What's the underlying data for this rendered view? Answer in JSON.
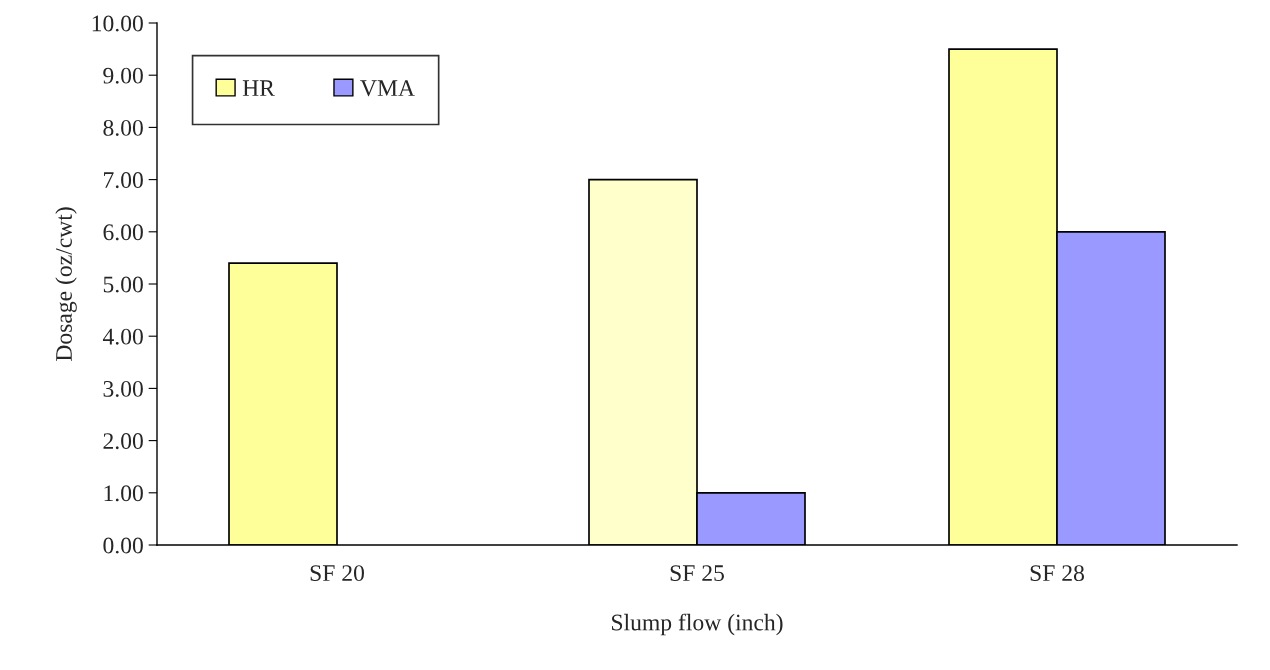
{
  "chart_data": {
    "type": "bar",
    "xlabel": "Slump flow (inch)",
    "ylabel": "Dosage (oz/cwt)",
    "categories": [
      "SF 20",
      "SF 25",
      "SF 28"
    ],
    "series": [
      {
        "name": "HR",
        "color": "#ffff99",
        "colors": [
          "#ffff99",
          "#ffffcc",
          "#ffff99"
        ],
        "values": [
          5.4,
          7.0,
          9.5
        ]
      },
      {
        "name": "VMA",
        "color": "#9999ff",
        "values": [
          null,
          1.0,
          6.0
        ]
      }
    ],
    "ylim": [
      0,
      10
    ],
    "yticks": [
      {
        "value": 0,
        "label": "0.00"
      },
      {
        "value": 1,
        "label": "1.00"
      },
      {
        "value": 2,
        "label": "2.00"
      },
      {
        "value": 3,
        "label": "3.00"
      },
      {
        "value": 4,
        "label": "4.00"
      },
      {
        "value": 5,
        "label": "5.00"
      },
      {
        "value": 6,
        "label": "6.00"
      },
      {
        "value": 7,
        "label": "7.00"
      },
      {
        "value": 8,
        "label": "8.00"
      },
      {
        "value": 9,
        "label": "9.00"
      },
      {
        "value": 10,
        "label": "10.00"
      }
    ],
    "grid": false,
    "legend": "top left"
  }
}
